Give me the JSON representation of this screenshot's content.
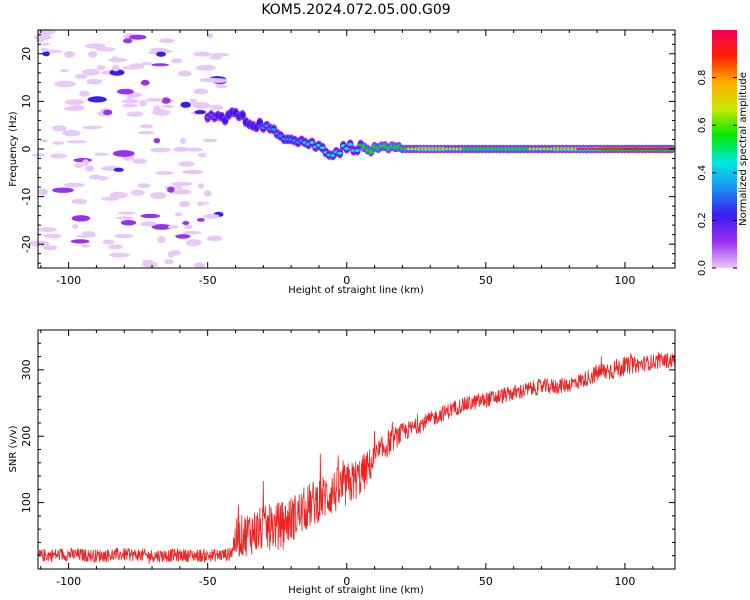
{
  "title": "KOM5.2024.072.05.00.G09",
  "chart_data": [
    {
      "type": "heatmap",
      "xlabel": "Height of straight line (km)",
      "ylabel": "Frequency (Hz)",
      "xlim": [
        -111,
        118
      ],
      "ylim": [
        -25,
        25
      ],
      "xticks": [
        -100,
        -50,
        0,
        50,
        100
      ],
      "yticks": [
        -20,
        -10,
        0,
        10,
        20
      ],
      "colorbar": {
        "label": "Normalized spectral amplitude",
        "range": [
          0.0,
          1.0
        ],
        "ticks": [
          0.0,
          0.2,
          0.4,
          0.6,
          0.8
        ],
        "colormap": [
          "#e8c8f8",
          "#9a30f0",
          "#3a1cf0",
          "#1e8ef0",
          "#00e8e0",
          "#00e800",
          "#c8e800",
          "#ffb000",
          "#ff2000",
          "#f0005a"
        ]
      },
      "ridge": [
        {
          "x": -50,
          "f": 7.0,
          "amp": 0.15
        },
        {
          "x": -45,
          "f": 6.5,
          "amp": 0.18
        },
        {
          "x": -40,
          "f": 7.5,
          "amp": 0.22
        },
        {
          "x": -35,
          "f": 5.5,
          "amp": 0.25
        },
        {
          "x": -30,
          "f": 5.0,
          "amp": 0.28
        },
        {
          "x": -25,
          "f": 3.0,
          "amp": 0.32
        },
        {
          "x": -20,
          "f": 2.5,
          "amp": 0.35
        },
        {
          "x": -15,
          "f": 1.5,
          "amp": 0.4
        },
        {
          "x": -10,
          "f": 0.5,
          "amp": 0.42
        },
        {
          "x": -5,
          "f": -1.0,
          "amp": 0.4
        },
        {
          "x": 0,
          "f": 0.5,
          "amp": 0.45
        },
        {
          "x": 5,
          "f": 0.3,
          "amp": 0.5
        },
        {
          "x": 10,
          "f": -0.3,
          "amp": 0.55
        },
        {
          "x": 15,
          "f": 0.0,
          "amp": 0.58
        },
        {
          "x": 20,
          "f": 0.0,
          "amp": 0.55
        },
        {
          "x": 25,
          "f": 0.0,
          "amp": 0.7
        },
        {
          "x": 30,
          "f": 0.0,
          "amp": 0.8
        },
        {
          "x": 40,
          "f": 0.0,
          "amp": 0.62
        },
        {
          "x": 50,
          "f": 0.0,
          "amp": 0.58
        },
        {
          "x": 60,
          "f": 0.0,
          "amp": 0.55
        },
        {
          "x": 70,
          "f": 0.0,
          "amp": 0.65
        },
        {
          "x": 80,
          "f": 0.0,
          "amp": 0.8
        },
        {
          "x": 90,
          "f": 0.0,
          "amp": 0.9
        },
        {
          "x": 100,
          "f": 0.0,
          "amp": 0.95
        },
        {
          "x": 110,
          "f": 0.0,
          "amp": 0.95
        },
        {
          "x": 118,
          "f": 0.0,
          "amp": 0.95
        }
      ],
      "noise_region_x": [
        -111,
        -45
      ]
    },
    {
      "type": "line",
      "xlabel": "Height of straight line (km)",
      "ylabel": "SNR (v/v)",
      "xlim": [
        -111,
        118
      ],
      "ylim": [
        0,
        360
      ],
      "xticks": [
        -100,
        -50,
        0,
        50,
        100
      ],
      "yticks": [
        100,
        200,
        300
      ],
      "line_color": "#ee2222",
      "series": [
        {
          "x": [
            -111,
            -100,
            -90,
            -80,
            -70,
            -60,
            -50,
            -42,
            -40,
            -35,
            -30,
            -25,
            -20,
            -15,
            -10,
            -5,
            0,
            5,
            10,
            15,
            20,
            25,
            30,
            35,
            40,
            45,
            50,
            55,
            60,
            65,
            70,
            75,
            80,
            85,
            90,
            95,
            100,
            105,
            110,
            118
          ],
          "values": [
            20,
            22,
            20,
            22,
            20,
            21,
            20,
            22,
            45,
            55,
            60,
            65,
            75,
            90,
            105,
            115,
            125,
            140,
            165,
            190,
            205,
            215,
            225,
            235,
            245,
            250,
            255,
            260,
            265,
            270,
            275,
            275,
            278,
            285,
            295,
            300,
            305,
            308,
            312,
            315
          ],
          "noise_amplitude": [
            10,
            10,
            10,
            10,
            10,
            10,
            10,
            10,
            30,
            35,
            35,
            35,
            35,
            35,
            35,
            35,
            35,
            30,
            25,
            20,
            15,
            12,
            12,
            12,
            12,
            12,
            12,
            12,
            12,
            12,
            12,
            12,
            12,
            12,
            14,
            16,
            14,
            12,
            12,
            12
          ]
        }
      ]
    }
  ]
}
